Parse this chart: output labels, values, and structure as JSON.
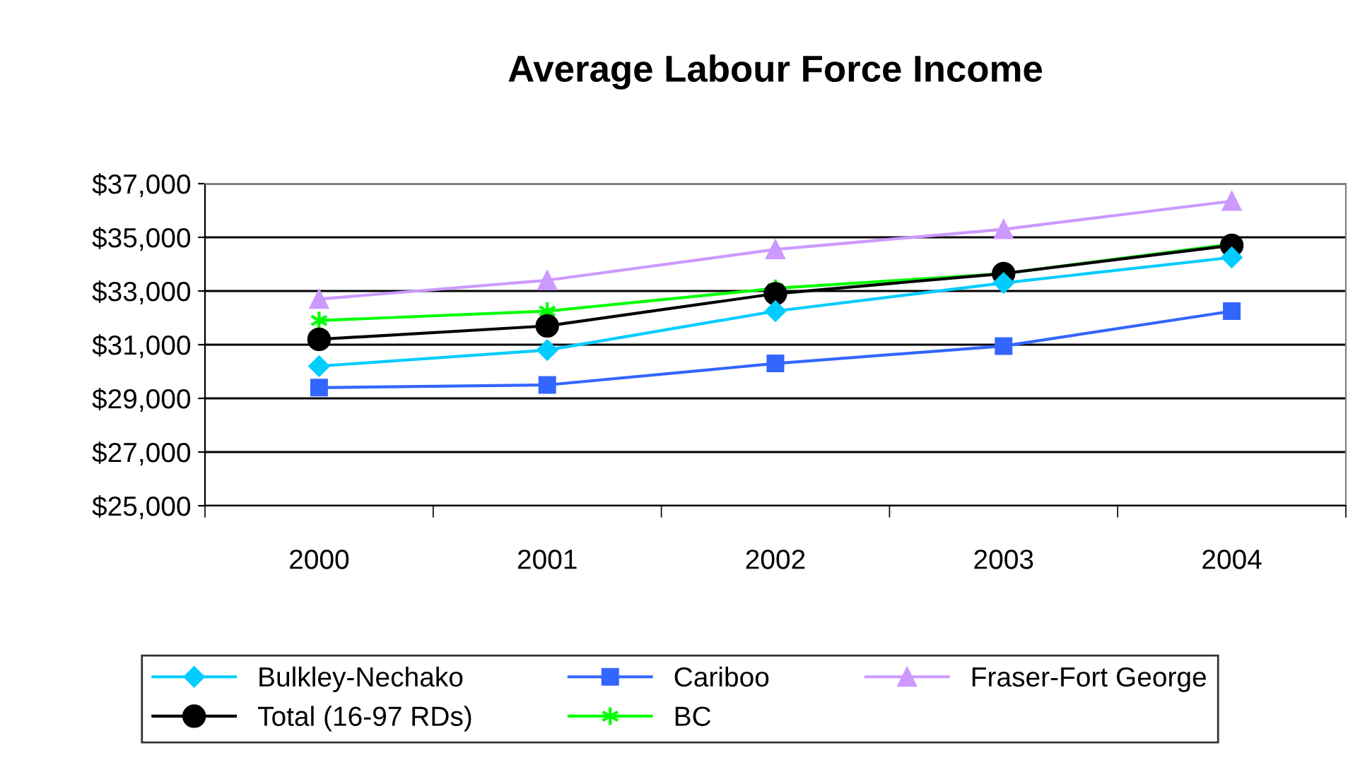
{
  "chart_data": {
    "type": "line",
    "title": "Average Labour Force Income",
    "categories": [
      "2000",
      "2001",
      "2002",
      "2003",
      "2004"
    ],
    "series": [
      {
        "name": "Bulkley-Nechako",
        "color": "#00ccff",
        "marker": "diamond",
        "values": [
          30200,
          30800,
          32250,
          33300,
          34250
        ]
      },
      {
        "name": "Cariboo",
        "color": "#3366ff",
        "marker": "square",
        "values": [
          29400,
          29500,
          30300,
          30950,
          32250
        ]
      },
      {
        "name": "Fraser-Fort George",
        "color": "#cc99ff",
        "marker": "triangle",
        "values": [
          32700,
          33400,
          34550,
          35300,
          36350
        ]
      },
      {
        "name": "Total (16-97 RDs)",
        "color": "#000000",
        "marker": "circle",
        "values": [
          31200,
          31700,
          32900,
          33650,
          34700
        ]
      },
      {
        "name": "BC",
        "color": "#00ff00",
        "marker": "cross",
        "values": [
          31900,
          32250,
          33100,
          33650,
          34750
        ]
      }
    ],
    "ylim": [
      25000,
      37000
    ],
    "yticks": [
      {
        "value": 25000,
        "label": "$25,000"
      },
      {
        "value": 27000,
        "label": "$27,000"
      },
      {
        "value": 29000,
        "label": "$29,000"
      },
      {
        "value": 31000,
        "label": "$31,000"
      },
      {
        "value": 33000,
        "label": "$33,000"
      },
      {
        "value": 35000,
        "label": "$35,000"
      },
      {
        "value": 37000,
        "label": "$37,000"
      }
    ],
    "grid": "y",
    "legend": "bottom"
  }
}
